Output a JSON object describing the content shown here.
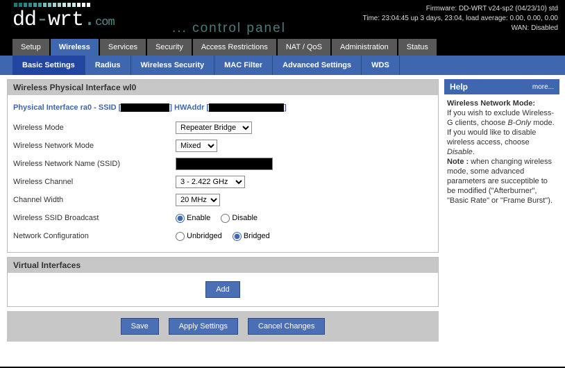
{
  "header": {
    "firmware": "Firmware: DD-WRT v24-sp2 (04/23/10) std",
    "time": "Time: 23:04:45 up 3 days, 23:04, load average: 0.00, 0.00, 0.00",
    "wan": "WAN: Disabled",
    "logo_main_dd": "dd",
    "logo_main_dash": "-",
    "logo_main_wrt": "wrt",
    "logo_dot": ".",
    "logo_com": "com",
    "cpanel": "... control panel",
    "bar_colors": [
      "#1a7a7a",
      "#1a7a7a",
      "#2a8a8a",
      "#2a8a8a",
      "#3a9a9a",
      "#3a9a9a",
      "#7abfbf",
      "#7abfbf",
      "#a8d4d4",
      "#a8d4d4",
      "#cdeaea",
      "#cdeaea",
      "#cdeaea",
      "#fff",
      "#fff",
      "#fff"
    ]
  },
  "nav": {
    "main": [
      "Setup",
      "Wireless",
      "Services",
      "Security",
      "Access Restrictions",
      "NAT / QoS",
      "Administration",
      "Status"
    ],
    "main_active": 1,
    "sub": [
      "Basic Settings",
      "Radius",
      "Wireless Security",
      "MAC Filter",
      "Advanced Settings",
      "WDS"
    ],
    "sub_active": 0
  },
  "section": {
    "phys_title": "Wireless Physical Interface wl0",
    "pif_prefix": "Physical Interface ra0 - SSID [",
    "pif_mid": "] HWAddr [",
    "pif_suffix": "]",
    "rows": {
      "wireless_mode": {
        "label": "Wireless Mode",
        "value": "Repeater Bridge"
      },
      "network_mode": {
        "label": "Wireless Network Mode",
        "value": "Mixed"
      },
      "ssid": {
        "label": "Wireless Network Name (SSID)",
        "value": ""
      },
      "channel": {
        "label": "Wireless Channel",
        "value": "3 - 2.422 GHz"
      },
      "chan_width": {
        "label": "Channel Width",
        "value": "20 MHz"
      },
      "ssid_bcast": {
        "label": "Wireless SSID Broadcast",
        "enable": "Enable",
        "disable": "Disable",
        "value": "enable"
      },
      "net_config": {
        "label": "Network Configuration",
        "unbridged": "Unbridged",
        "bridged": "Bridged",
        "value": "bridged"
      }
    },
    "virt_title": "Virtual Interfaces",
    "add_btn": "Add"
  },
  "buttons": {
    "save": "Save",
    "apply": "Apply Settings",
    "cancel": "Cancel Changes"
  },
  "help": {
    "title": "Help",
    "more": "more...",
    "h1": "Wireless Network Mode:",
    "p1_a": "If you wish to exclude Wireless-G clients, choose ",
    "p1_i": "B-Only",
    "p1_b": " mode. If you would like to disable wireless access, choose ",
    "p1_i2": "Disable",
    "p1_c": ".",
    "note_l": "Note :",
    "note_t": " when changing wireless mode, some advanced parameters are succeptible to be modified (\"Afterburner\", \"Basic Rate\" or \"Frame Burst\")."
  }
}
